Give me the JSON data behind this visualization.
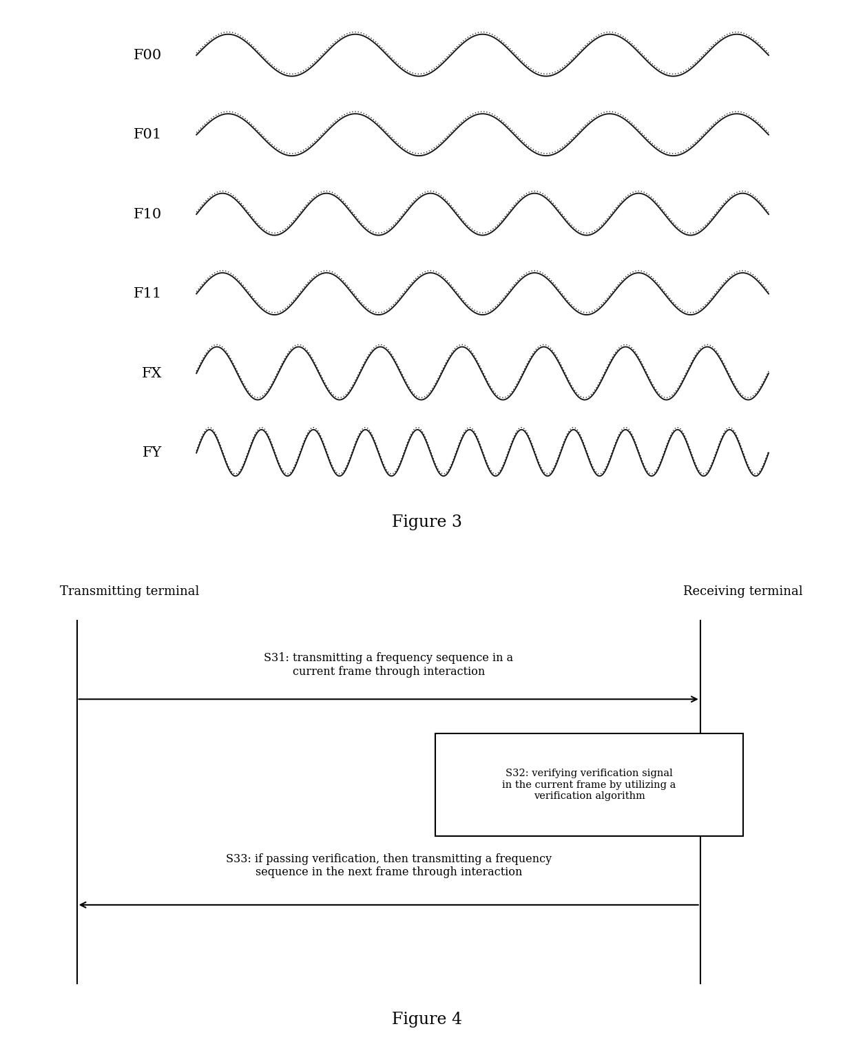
{
  "fig3_labels": [
    "F00",
    "F01",
    "F10",
    "F11",
    "FX",
    "FY"
  ],
  "fig3_frequencies": [
    4.5,
    4.5,
    5.5,
    5.5,
    7.0,
    11.0
  ],
  "fig3_amplitudes": [
    0.038,
    0.038,
    0.038,
    0.038,
    0.048,
    0.042
  ],
  "fig3_title": "Figure 3",
  "fig4_title": "Figure 4",
  "fig4_left_label": "Transmitting terminal",
  "fig4_right_label": "Receiving terminal",
  "s31_text": "S31: transmitting a frequency sequence in a\ncurrent frame through interaction",
  "s32_text": "S32: verifying verification signal\nin the current frame by utilizing a\nverification algorithm",
  "s33_text": "S33: if passing verification, then transmitting a frequency\nsequence in the next frame through interaction",
  "background_color": "#ffffff",
  "line_color": "#000000",
  "text_color": "#000000"
}
